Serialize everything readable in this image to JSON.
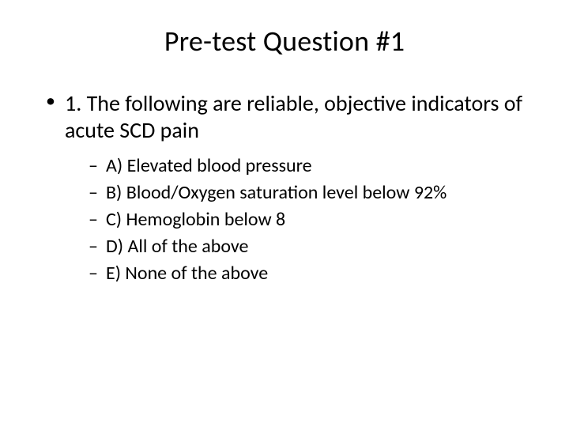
{
  "slide": {
    "title": "Pre-test Question #1",
    "question": "1. The following are reliable, objective indicators of acute SCD pain",
    "options": [
      "A) Elevated blood pressure",
      "B) Blood/Oxygen saturation level below 92%",
      "C) Hemoglobin below 8",
      "D) All of the above",
      "E) None of the above"
    ]
  },
  "style": {
    "background_color": "#ffffff",
    "text_color": "#000000",
    "title_fontsize": 36,
    "body_fontsize": 28,
    "sub_fontsize": 24,
    "font_family": "Calibri",
    "bullet_level1": "•",
    "bullet_level2": "–"
  }
}
